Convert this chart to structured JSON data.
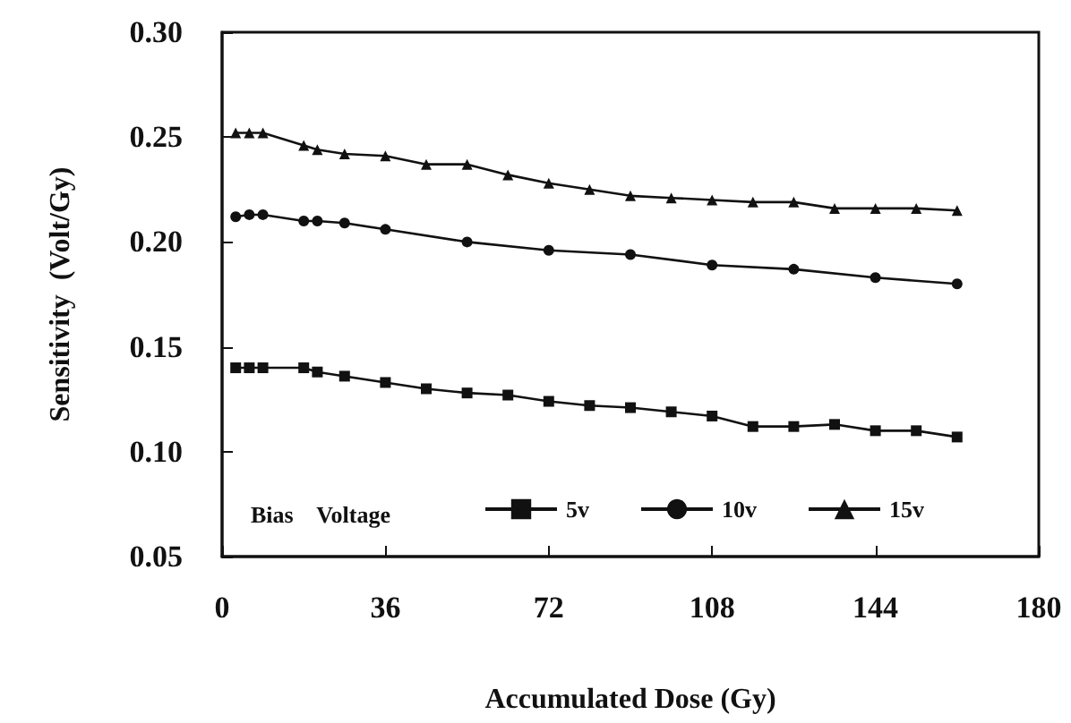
{
  "chart_data": {
    "type": "line",
    "xlabel": "Accumulated Dose (Gy)",
    "ylabel": "Sensitivity  (Volt/Gy)",
    "legend_title": "Bias    Voltage",
    "legend": "bottom",
    "grid": false,
    "xlim": [
      0,
      180
    ],
    "xticks": [
      0,
      36,
      72,
      108,
      144,
      180
    ],
    "ylim": [
      0.05,
      0.3
    ],
    "yticks": [
      {
        "value": 0.05,
        "label": "0.05"
      },
      {
        "value": 0.1,
        "label": "0.10"
      },
      {
        "value": 0.15,
        "label": "0.15"
      },
      {
        "value": 0.2,
        "label": "0.20"
      },
      {
        "value": 0.25,
        "label": "0.25"
      },
      {
        "value": 0.3,
        "label": "0.30"
      }
    ],
    "series": [
      {
        "name": "5v",
        "color": "#111111",
        "marker": "square",
        "x": [
          3,
          6,
          9,
          18,
          21,
          27,
          36,
          45,
          54,
          63,
          72,
          81,
          90,
          99,
          108,
          117,
          126,
          135,
          144,
          153,
          162
        ],
        "values": [
          0.14,
          0.14,
          0.14,
          0.14,
          0.138,
          0.136,
          0.133,
          0.13,
          0.128,
          0.127,
          0.124,
          0.122,
          0.121,
          0.119,
          0.117,
          0.112,
          0.112,
          0.113,
          0.11,
          0.11,
          0.107
        ]
      },
      {
        "name": "10v",
        "color": "#111111",
        "marker": "circle",
        "x": [
          3,
          6,
          9,
          18,
          21,
          27,
          36,
          54,
          72,
          90,
          108,
          126,
          144,
          162
        ],
        "values": [
          0.212,
          0.213,
          0.213,
          0.21,
          0.21,
          0.209,
          0.206,
          0.2,
          0.196,
          0.194,
          0.189,
          0.187,
          0.183,
          0.18
        ]
      },
      {
        "name": "15v",
        "color": "#111111",
        "marker": "triangle",
        "x": [
          3,
          6,
          9,
          18,
          21,
          27,
          36,
          45,
          54,
          63,
          72,
          81,
          90,
          99,
          108,
          117,
          126,
          135,
          144,
          153,
          162
        ],
        "values": [
          0.252,
          0.252,
          0.252,
          0.246,
          0.244,
          0.242,
          0.241,
          0.237,
          0.237,
          0.232,
          0.228,
          0.225,
          0.222,
          0.221,
          0.22,
          0.219,
          0.219,
          0.216,
          0.216,
          0.216,
          0.215
        ]
      }
    ]
  }
}
